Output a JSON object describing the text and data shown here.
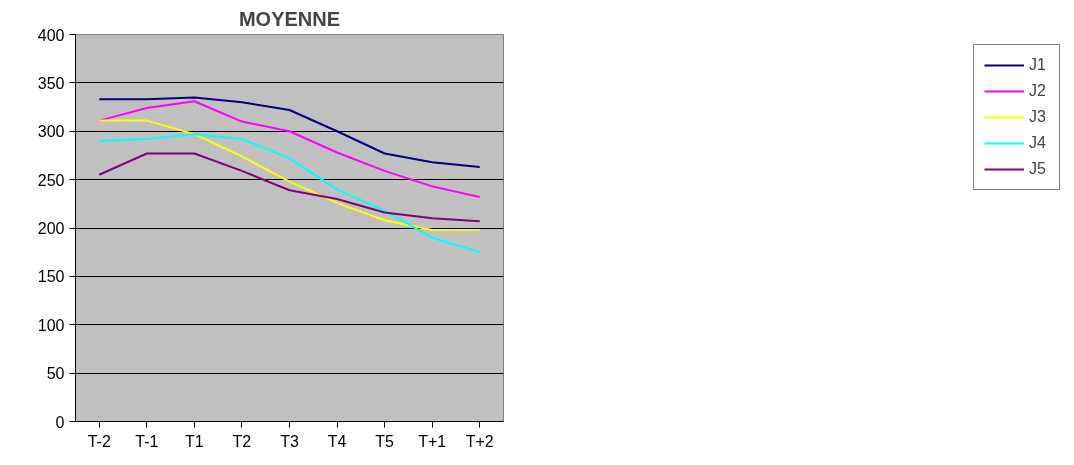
{
  "chart_data": {
    "type": "line",
    "title": "MOYENNE",
    "categories": [
      "T-2",
      "T-1",
      "T1",
      "T2",
      "T3",
      "T4",
      "T5",
      "T+1",
      "T+2"
    ],
    "ylim": [
      0,
      400
    ],
    "yticks": [
      0,
      50,
      100,
      150,
      200,
      250,
      300,
      350,
      400
    ],
    "grid": "y",
    "legend": "right",
    "marker": "none",
    "line_style": "solid",
    "series": [
      {
        "name": "J1",
        "color": "#000080",
        "values": [
          333,
          333,
          335,
          330,
          322,
          300,
          277,
          268,
          263
        ]
      },
      {
        "name": "J2",
        "color": "#ff00ff",
        "values": [
          311,
          324,
          331,
          310,
          300,
          278,
          259,
          243,
          232
        ]
      },
      {
        "name": "J3",
        "color": "#ffff00",
        "values": [
          311,
          311,
          297,
          274,
          248,
          226,
          208,
          198,
          198
        ]
      },
      {
        "name": "J4",
        "color": "#00ffff",
        "values": [
          290,
          292,
          297,
          292,
          272,
          240,
          218,
          190,
          175
        ]
      },
      {
        "name": "J5",
        "color": "#800080",
        "values": [
          255,
          277,
          277,
          259,
          239,
          230,
          216,
          210,
          207
        ]
      }
    ]
  }
}
